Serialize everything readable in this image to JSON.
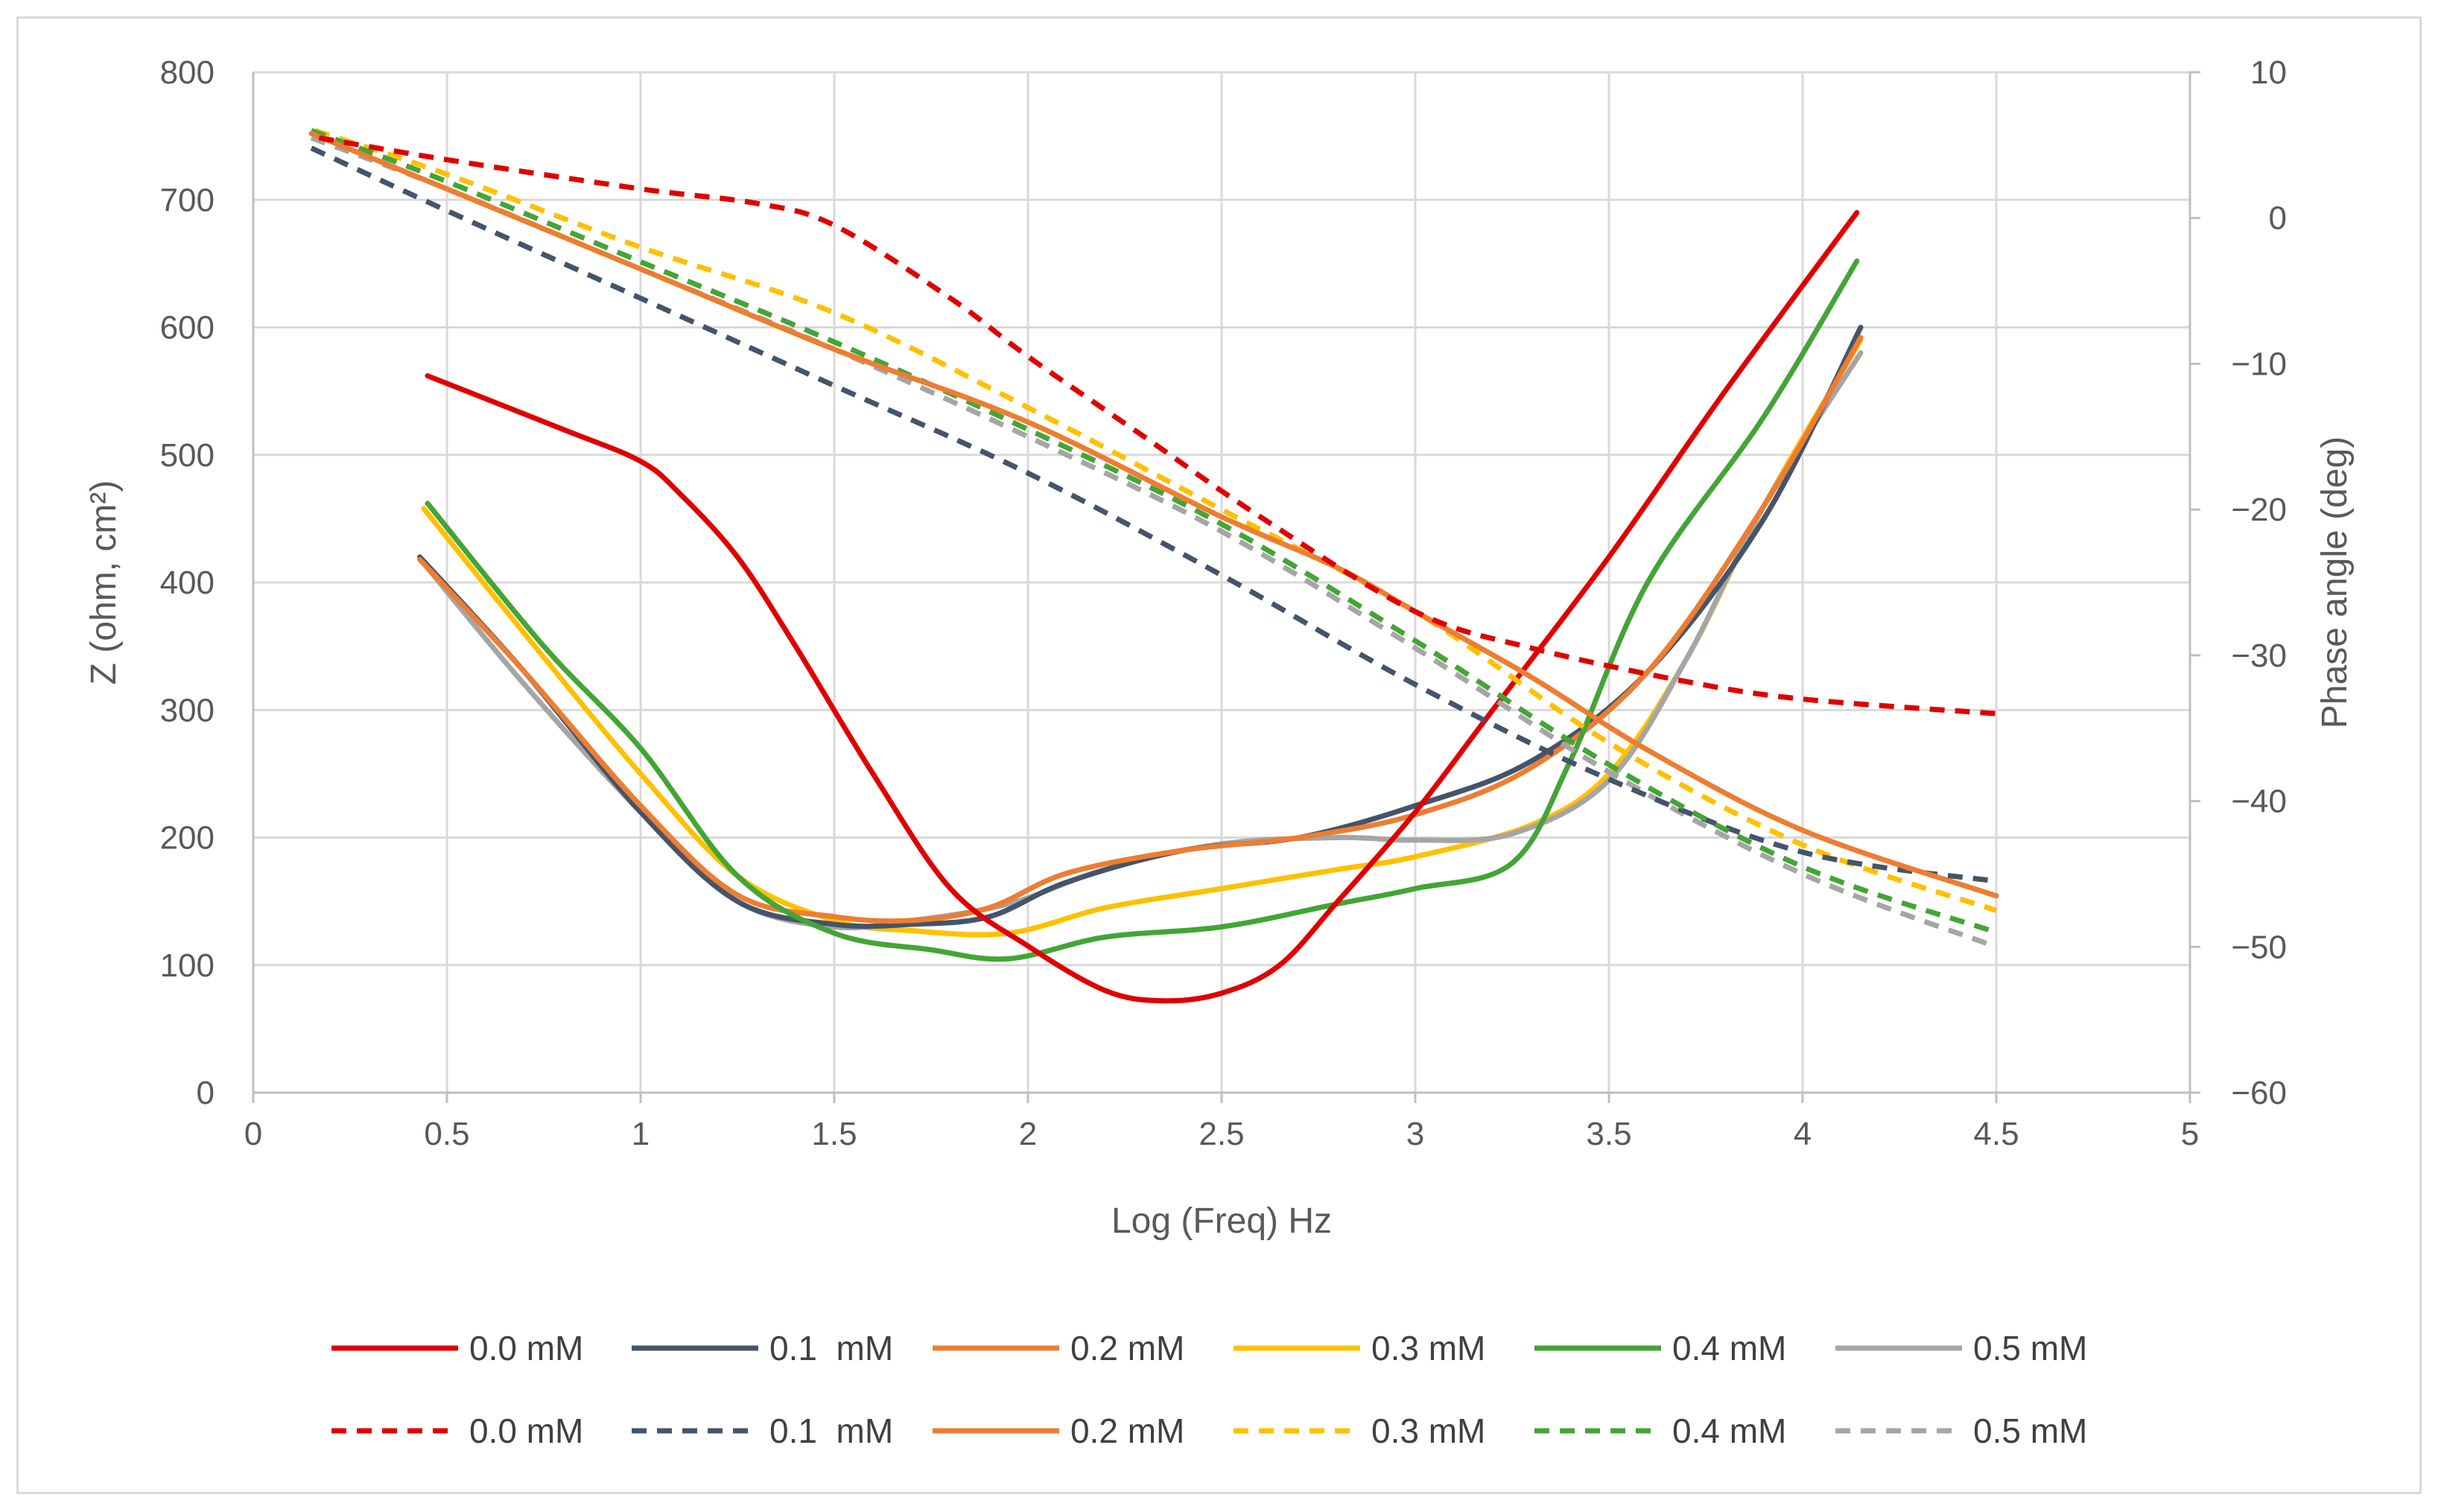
{
  "chart_data": {
    "type": "line",
    "title": "",
    "xlabel": "Log (Freq) Hz",
    "ylabel": "Z (ohm, cm²)",
    "y2label": "Phase angle (deg)",
    "xlim": [
      0,
      5
    ],
    "ylim": [
      0,
      800
    ],
    "y2lim": [
      -60,
      10
    ],
    "xticks": [
      0,
      0.5,
      1,
      1.5,
      2,
      2.5,
      3,
      3.5,
      4,
      4.5,
      5
    ],
    "xtick_labels": [
      "0",
      "0.5",
      "1",
      "1.5",
      "2",
      "2.5",
      "3",
      "3.5",
      "4",
      "4.5",
      "5"
    ],
    "yticks": [
      0,
      100,
      200,
      300,
      400,
      500,
      600,
      700,
      800
    ],
    "ytick_labels": [
      "0",
      "100",
      "200",
      "300",
      "400",
      "500",
      "600",
      "700",
      "800"
    ],
    "y2ticks": [
      -60,
      -50,
      -40,
      -30,
      -20,
      -10,
      0,
      10
    ],
    "y2tick_labels": [
      "−60",
      "−50",
      "−40",
      "−30",
      "−20",
      "−10",
      "0",
      "10"
    ],
    "grid": true,
    "legend_position": "bottom",
    "series": [
      {
        "name": "0.0 mM",
        "color": "#e00000",
        "style": "solid",
        "axis": "left",
        "x": [
          0.45,
          0.8,
          1.0,
          1.1,
          1.25,
          1.4,
          1.6,
          1.8,
          2.0,
          2.2,
          2.35,
          2.5,
          2.65,
          2.8,
          3.0,
          3.2,
          3.5,
          3.8,
          4.14
        ],
        "y": [
          562,
          520,
          495,
          470,
          420,
          350,
          250,
          160,
          115,
          80,
          72,
          78,
          100,
          150,
          220,
          300,
          420,
          550,
          690
        ]
      },
      {
        "name": "0.1  mM",
        "color": "#44546a",
        "style": "solid",
        "axis": "left",
        "x": [
          0.43,
          0.7,
          1.0,
          1.25,
          1.5,
          1.7,
          1.9,
          2.1,
          2.4,
          2.7,
          3.0,
          3.3,
          3.6,
          3.9,
          4.15
        ],
        "y": [
          420,
          330,
          220,
          150,
          132,
          132,
          138,
          165,
          190,
          200,
          225,
          260,
          330,
          450,
          600
        ]
      },
      {
        "name": "0.2 mM",
        "color": "#ed7d31",
        "style": "solid",
        "axis": "left",
        "x": [
          0.43,
          0.7,
          1.0,
          1.25,
          1.5,
          1.7,
          1.9,
          2.1,
          2.4,
          2.7,
          3.0,
          3.3,
          3.6,
          3.9,
          4.15
        ],
        "y": [
          418,
          330,
          225,
          155,
          138,
          135,
          145,
          172,
          190,
          200,
          218,
          255,
          330,
          460,
          592
        ]
      },
      {
        "name": "0.3 mM",
        "color": "#ffc000",
        "style": "solid",
        "axis": "left",
        "x": [
          0.44,
          0.7,
          1.0,
          1.25,
          1.5,
          1.7,
          1.95,
          2.2,
          2.5,
          2.8,
          3.0,
          3.3,
          3.5,
          3.7,
          3.9,
          4.15
        ],
        "y": [
          458,
          360,
          250,
          170,
          135,
          127,
          125,
          145,
          160,
          175,
          185,
          210,
          250,
          340,
          460,
          590
        ]
      },
      {
        "name": "0.4 mM",
        "color": "#43a535",
        "style": "solid",
        "axis": "left",
        "x": [
          0.45,
          0.75,
          1.0,
          1.25,
          1.5,
          1.75,
          1.95,
          2.2,
          2.5,
          2.8,
          3.0,
          3.25,
          3.4,
          3.6,
          3.9,
          4.14
        ],
        "y": [
          462,
          350,
          270,
          170,
          125,
          112,
          105,
          122,
          130,
          148,
          160,
          180,
          260,
          400,
          530,
          652
        ]
      },
      {
        "name": "0.5 mM",
        "color": "#a5a5a5",
        "style": "solid",
        "axis": "left",
        "x": [
          0.44,
          0.7,
          1.0,
          1.25,
          1.5,
          1.7,
          1.95,
          2.2,
          2.5,
          2.8,
          3.0,
          3.25,
          3.5,
          3.7,
          3.9,
          4.15
        ],
        "y": [
          415,
          320,
          220,
          150,
          130,
          135,
          148,
          175,
          195,
          200,
          198,
          203,
          245,
          340,
          460,
          580
        ]
      },
      {
        "name": "0.0 mM",
        "color": "#e00000",
        "style": "dashed",
        "axis": "right",
        "x": [
          0.17,
          0.5,
          1.0,
          1.3,
          1.5,
          1.8,
          2.0,
          2.3,
          2.6,
          3.0,
          3.3,
          3.7,
          4.0,
          4.5
        ],
        "y": [
          5.5,
          4.0,
          2.0,
          1.0,
          -0.5,
          -5.5,
          -9.5,
          -15.0,
          -20.5,
          -27.0,
          -29.5,
          -31.8,
          -33.0,
          -34.0
        ]
      },
      {
        "name": "0.1  mM",
        "color": "#44546a",
        "style": "dashed",
        "axis": "right",
        "x": [
          0.15,
          0.5,
          1.0,
          1.5,
          2.0,
          2.5,
          3.0,
          3.5,
          4.0,
          4.5
        ],
        "y": [
          4.8,
          0.5,
          -5.5,
          -11.5,
          -17.5,
          -24.5,
          -32.0,
          -38.5,
          -43.5,
          -45.5
        ]
      },
      {
        "name": "0.2 mM",
        "color": "#ed7d31",
        "style": "solid",
        "axis": "right",
        "x": [
          0.15,
          0.5,
          1.0,
          1.5,
          2.0,
          2.5,
          2.8,
          3.0,
          3.3,
          3.6,
          4.0,
          4.5
        ],
        "y": [
          5.8,
          2.0,
          -3.5,
          -9.0,
          -14.0,
          -20.5,
          -24.0,
          -27.0,
          -31.5,
          -36.5,
          -42.0,
          -46.5
        ]
      },
      {
        "name": "0.3 mM",
        "color": "#ffc000",
        "style": "dashed",
        "axis": "right",
        "x": [
          0.16,
          0.5,
          1.0,
          1.5,
          2.0,
          2.5,
          3.0,
          3.5,
          4.0,
          4.5
        ],
        "y": [
          6.0,
          3.0,
          -2.0,
          -6.5,
          -13.0,
          -20.0,
          -27.0,
          -36.0,
          -43.0,
          -47.5
        ]
      },
      {
        "name": "0.4 mM",
        "color": "#43a535",
        "style": "dashed",
        "axis": "right",
        "x": [
          0.15,
          0.5,
          1.0,
          1.5,
          2.0,
          2.5,
          3.0,
          3.5,
          4.0,
          4.5
        ],
        "y": [
          6.0,
          2.5,
          -3.0,
          -8.5,
          -14.5,
          -21.0,
          -29.0,
          -37.5,
          -44.5,
          -49.0
        ]
      },
      {
        "name": "0.5 mM",
        "color": "#a5a5a5",
        "style": "dashed",
        "axis": "right",
        "x": [
          0.15,
          0.5,
          1.0,
          1.5,
          2.0,
          2.5,
          3.0,
          3.5,
          4.0,
          4.5
        ],
        "y": [
          5.5,
          2.0,
          -3.5,
          -9.0,
          -15.0,
          -21.5,
          -29.5,
          -38.0,
          -45.0,
          -50.0
        ]
      }
    ]
  }
}
